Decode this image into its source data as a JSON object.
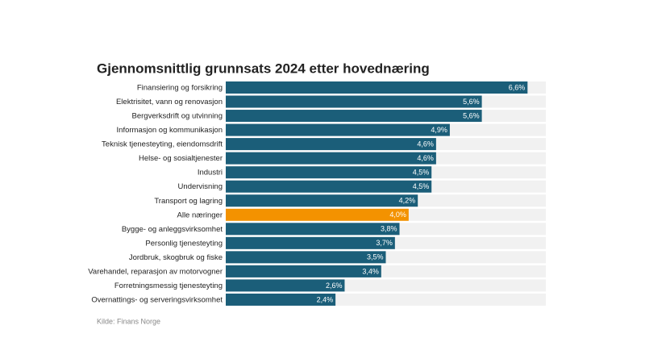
{
  "chart_data": {
    "type": "bar",
    "orientation": "horizontal",
    "title": "Gjennomsnittlig grunnsats 2024 etter hovednæring",
    "source": "Kilde: Finans Norge",
    "categories": [
      "Finansiering og forsikring",
      "Elektrisitet, vann og renovasjon",
      "Bergverksdrift og utvinning",
      "Informasjon og kommunikasjon",
      "Teknisk tjenesteyting, eiendomsdrift",
      "Helse- og sosialtjenester",
      "Industri",
      "Undervisning",
      "Transport og lagring",
      "Alle næringer",
      "Bygge- og anleggsvirksomhet",
      "Personlig tjenesteyting",
      "Jordbruk, skogbruk og fiske",
      "Varehandel, reparasjon av motorvogner",
      "Forretningsmessig tjenesteyting",
      "Overnattings- og serveringsvirksomhet"
    ],
    "values": [
      6.6,
      5.6,
      5.6,
      4.9,
      4.6,
      4.6,
      4.5,
      4.5,
      4.2,
      4.0,
      3.8,
      3.7,
      3.5,
      3.4,
      2.6,
      2.4
    ],
    "value_labels": [
      "6,6%",
      "5,6%",
      "5,6%",
      "4,9%",
      "4,6%",
      "4,6%",
      "4,5%",
      "4,5%",
      "4,2%",
      "4,0%",
      "3,8%",
      "3,7%",
      "3,5%",
      "3,4%",
      "2,6%",
      "2,4%"
    ],
    "colors": [
      "#1b5e79",
      "#1b5e79",
      "#1b5e79",
      "#1b5e79",
      "#1b5e79",
      "#1b5e79",
      "#1b5e79",
      "#1b5e79",
      "#1b5e79",
      "#f39200",
      "#1b5e79",
      "#1b5e79",
      "#1b5e79",
      "#1b5e79",
      "#1b5e79",
      "#1b5e79"
    ],
    "track_color": "#f1f1f1",
    "xlim": [
      0,
      7
    ]
  }
}
